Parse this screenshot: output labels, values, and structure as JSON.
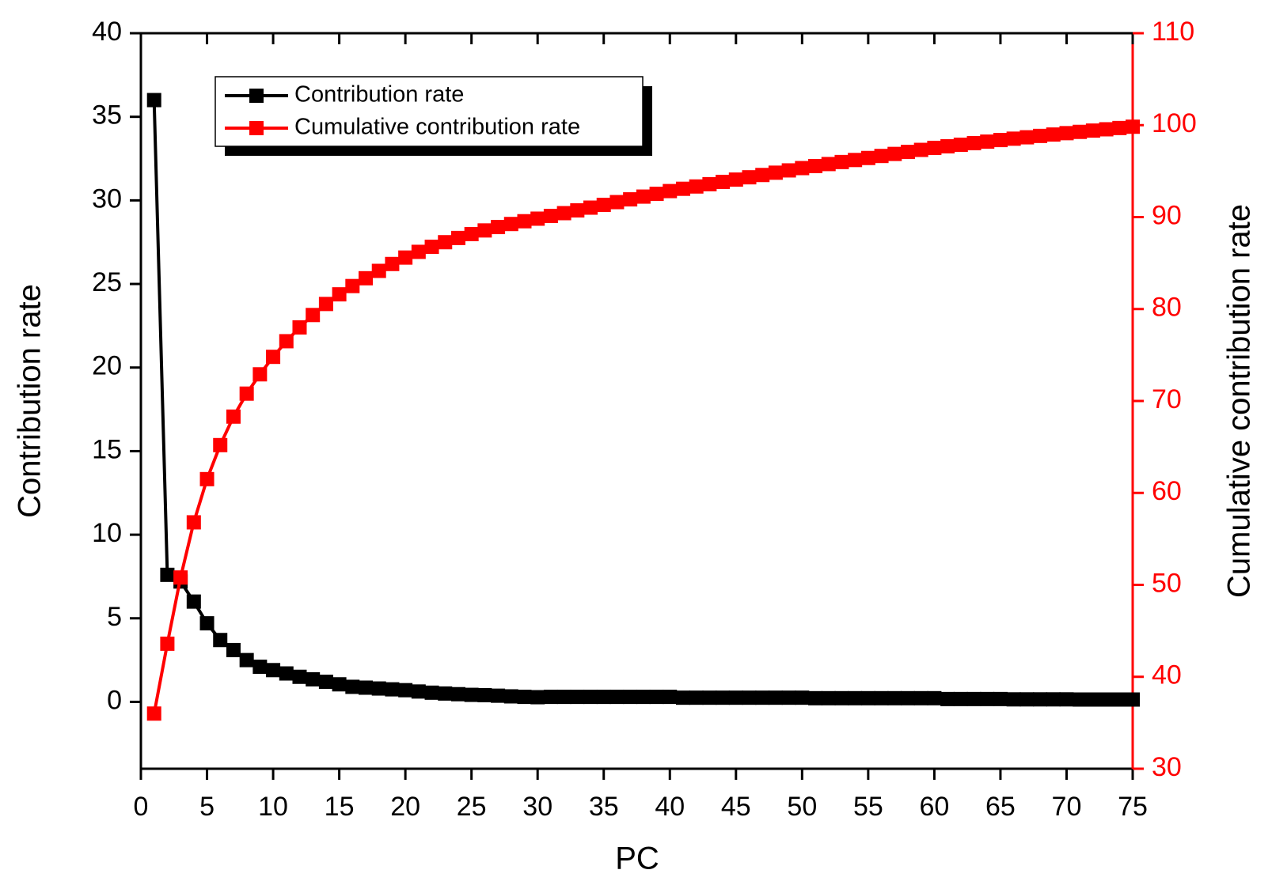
{
  "chart_data": {
    "type": "line",
    "xlabel": "PC",
    "ylabel": "Contribution rate",
    "y2label": "Cumulative contribution rate",
    "x": [
      1,
      2,
      3,
      4,
      5,
      6,
      7,
      8,
      9,
      10,
      11,
      12,
      13,
      14,
      15,
      16,
      17,
      18,
      19,
      20,
      21,
      22,
      23,
      24,
      25,
      26,
      27,
      28,
      29,
      30,
      31,
      32,
      33,
      34,
      35,
      36,
      37,
      38,
      39,
      40,
      41,
      42,
      43,
      44,
      45,
      46,
      47,
      48,
      49,
      50,
      51,
      52,
      53,
      54,
      55,
      56,
      57,
      58,
      59,
      60,
      61,
      62,
      63,
      64,
      65,
      66,
      67,
      68,
      69,
      70,
      71,
      72,
      73,
      74,
      75
    ],
    "series": [
      {
        "name": "Contribution rate",
        "color": "#000000",
        "axis": "y",
        "values": [
          36,
          7.6,
          7.2,
          6.0,
          4.7,
          3.7,
          3.1,
          2.5,
          2.1,
          1.9,
          1.7,
          1.5,
          1.35,
          1.2,
          1.05,
          0.9,
          0.85,
          0.8,
          0.75,
          0.7,
          0.62,
          0.55,
          0.5,
          0.46,
          0.42,
          0.4,
          0.37,
          0.33,
          0.3,
          0.28,
          0.3,
          0.3,
          0.3,
          0.3,
          0.3,
          0.3,
          0.3,
          0.3,
          0.3,
          0.3,
          0.25,
          0.25,
          0.25,
          0.25,
          0.25,
          0.25,
          0.25,
          0.25,
          0.25,
          0.25,
          0.22,
          0.22,
          0.22,
          0.22,
          0.22,
          0.22,
          0.22,
          0.22,
          0.22,
          0.22,
          0.17,
          0.17,
          0.17,
          0.17,
          0.17,
          0.15,
          0.15,
          0.15,
          0.15,
          0.15,
          0.14,
          0.14,
          0.14,
          0.14,
          0.14
        ]
      },
      {
        "name": "Cumulative contribution rate",
        "color": "#ff0000",
        "axis": "y2",
        "values": [
          36,
          43.6,
          50.8,
          56.8,
          61.5,
          65.2,
          68.3,
          70.8,
          72.9,
          74.8,
          76.5,
          78.0,
          79.35,
          80.55,
          81.6,
          82.5,
          83.35,
          84.15,
          84.9,
          85.6,
          86.22,
          86.77,
          87.27,
          87.73,
          88.15,
          88.55,
          88.92,
          89.25,
          89.55,
          89.83,
          90.13,
          90.43,
          90.73,
          91.03,
          91.33,
          91.63,
          91.93,
          92.23,
          92.53,
          92.83,
          93.08,
          93.33,
          93.58,
          93.83,
          94.08,
          94.33,
          94.58,
          94.83,
          95.08,
          95.33,
          95.55,
          95.77,
          95.99,
          96.21,
          96.43,
          96.65,
          96.87,
          97.09,
          97.31,
          97.53,
          97.7,
          97.87,
          98.04,
          98.21,
          98.38,
          98.53,
          98.68,
          98.83,
          98.98,
          99.13,
          99.27,
          99.41,
          99.55,
          99.69,
          99.83
        ]
      }
    ],
    "xlim": [
      0,
      75
    ],
    "xticks": [
      0,
      5,
      10,
      15,
      20,
      25,
      30,
      35,
      40,
      45,
      50,
      55,
      60,
      65,
      70,
      75
    ],
    "ylim": [
      -4,
      40
    ],
    "yticks": [
      0,
      5,
      10,
      15,
      20,
      25,
      30,
      35,
      40
    ],
    "y2lim": [
      30,
      110
    ],
    "y2ticks": [
      30,
      40,
      50,
      60,
      70,
      80,
      90,
      100,
      110
    ],
    "y2color": "#ff0000",
    "legend": "upper left"
  }
}
